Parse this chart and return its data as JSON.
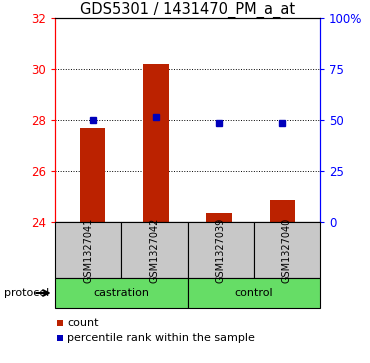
{
  "title": "GDS5301 / 1431470_PM_a_at",
  "samples": [
    "GSM1327041",
    "GSM1327042",
    "GSM1327039",
    "GSM1327040"
  ],
  "count_values": [
    27.7,
    30.2,
    24.35,
    24.85
  ],
  "percentile_values": [
    50.0,
    51.5,
    48.5,
    48.5
  ],
  "count_baseline": 24.0,
  "ylim_left": [
    24,
    32
  ],
  "ylim_right": [
    0,
    100
  ],
  "yticks_left": [
    24,
    26,
    28,
    30,
    32
  ],
  "yticks_right": [
    0,
    25,
    50,
    75,
    100
  ],
  "ytick_labels_right": [
    "0",
    "25",
    "50",
    "75",
    "100%"
  ],
  "bar_color": "#BB2200",
  "dot_color": "#0000BB",
  "group_bg_color": "#C8C8C8",
  "green_color": "#66DD66",
  "title_fontsize": 10.5,
  "tick_fontsize": 8.5,
  "legend_fontsize": 8
}
